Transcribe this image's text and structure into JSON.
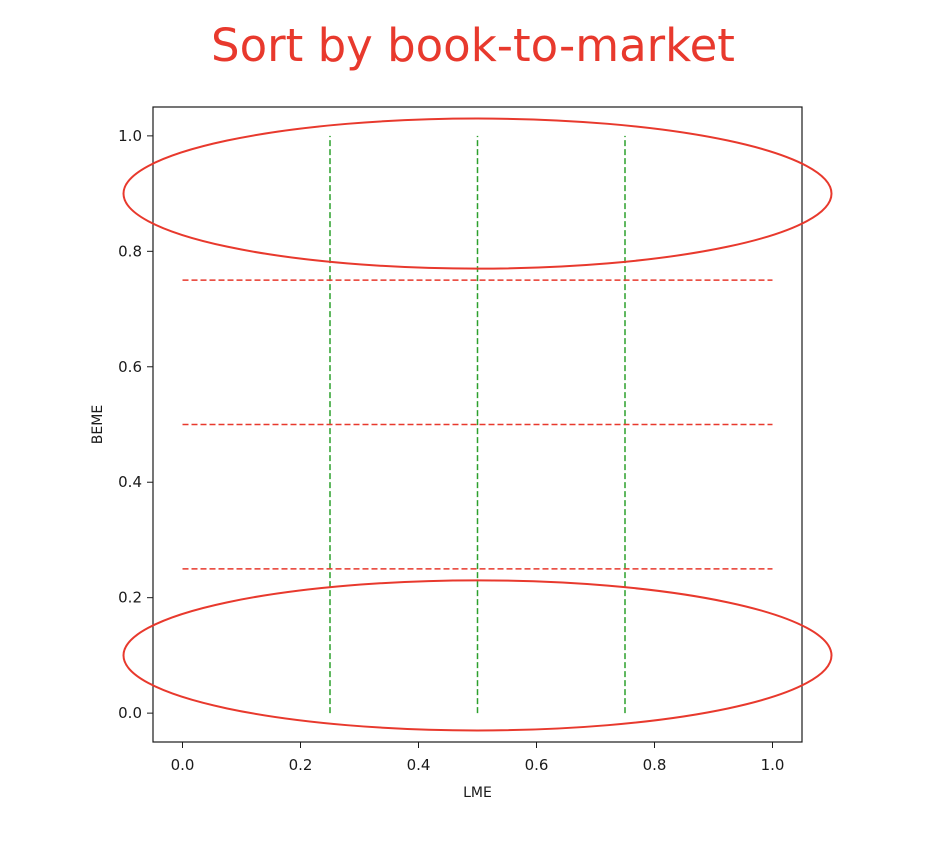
{
  "slide": {
    "title": "Sort by book-to-market"
  },
  "chart_data": {
    "type": "line",
    "title": "",
    "xlabel": "LME",
    "ylabel": "BEME",
    "xlim": [
      -0.05,
      1.05
    ],
    "ylim": [
      -0.05,
      1.05
    ],
    "xticks": [
      0.0,
      0.2,
      0.4,
      0.6,
      0.8,
      1.0
    ],
    "yticks": [
      0.0,
      0.2,
      0.4,
      0.6,
      0.8,
      1.0
    ],
    "xtick_labels": [
      "0.0",
      "0.2",
      "0.4",
      "0.6",
      "0.8",
      "1.0"
    ],
    "ytick_labels": [
      "0.0",
      "0.2",
      "0.4",
      "0.6",
      "0.8",
      "1.0"
    ],
    "grid": false,
    "vertical_lines": {
      "x": [
        0.25,
        0.5,
        0.75
      ],
      "y_range": [
        0,
        1
      ],
      "color": "#2ca02c",
      "style": "dashed"
    },
    "horizontal_lines": {
      "y": [
        0.25,
        0.5,
        0.75
      ],
      "x_range": [
        0,
        1
      ],
      "color": "#e8392d",
      "style": "dashed"
    },
    "highlight_ellipses": [
      {
        "center": [
          0.5,
          0.9
        ],
        "half_width": 0.6,
        "half_height": 0.13,
        "color": "#e8392d"
      },
      {
        "center": [
          0.5,
          0.1
        ],
        "half_width": 0.6,
        "half_height": 0.13,
        "color": "#e8392d"
      }
    ]
  }
}
